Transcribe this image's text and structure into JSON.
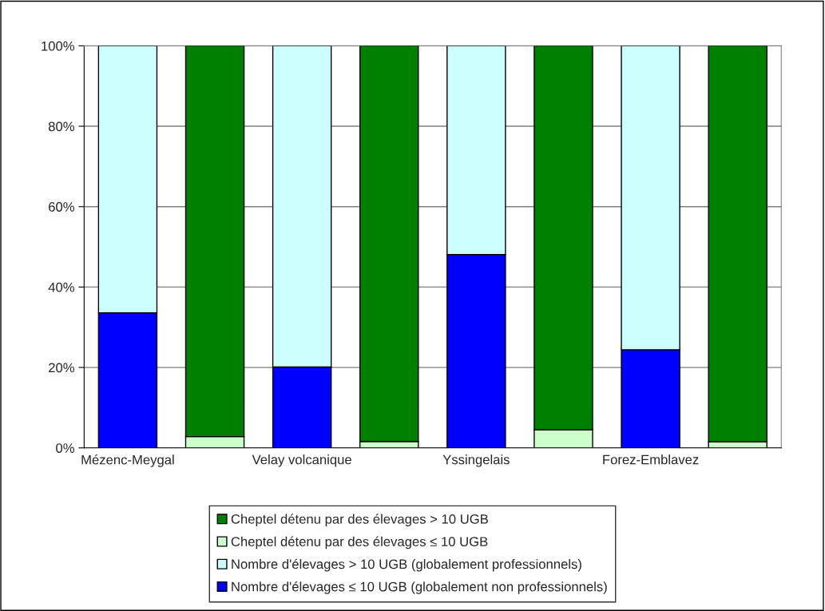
{
  "chart_data": {
    "type": "bar",
    "stacked": true,
    "categories": [
      "Mézenc-Meygal",
      null,
      "Velay volcanique",
      null,
      "Yssingelais",
      null,
      "Forez-Emblavez",
      null
    ],
    "series": [
      {
        "name": "Nombre d'élevages ≤ 10 UGB (globalement non professionnels)",
        "color": "#0000ff",
        "values": [
          33.6,
          null,
          20.1,
          null,
          48.1,
          null,
          24.4,
          null
        ]
      },
      {
        "name": "Nombre d'élevages > 10 UGB (globalement professionnels)",
        "color": "#ccffff",
        "values": [
          66.4,
          null,
          79.9,
          null,
          51.9,
          null,
          75.6,
          null
        ]
      },
      {
        "name": "Cheptel détenu par des élevages ≤ 10 UGB",
        "color": "#ccffcc",
        "values": [
          null,
          2.8,
          null,
          1.6,
          null,
          4.5,
          null,
          1.5
        ]
      },
      {
        "name": "Cheptel détenu par des élevages > 10 UGB",
        "color": "#008000",
        "values": [
          null,
          97.2,
          null,
          98.4,
          null,
          95.5,
          null,
          98.5
        ]
      }
    ],
    "ylim": [
      0,
      100
    ],
    "yticks": [
      {
        "value": 0,
        "label": "0%"
      },
      {
        "value": 20,
        "label": "20%"
      },
      {
        "value": 40,
        "label": "40%"
      },
      {
        "value": 60,
        "label": "60%"
      },
      {
        "value": 80,
        "label": "80%"
      },
      {
        "value": 100,
        "label": "100%"
      }
    ],
    "grid": "y",
    "legend": "bottom"
  }
}
